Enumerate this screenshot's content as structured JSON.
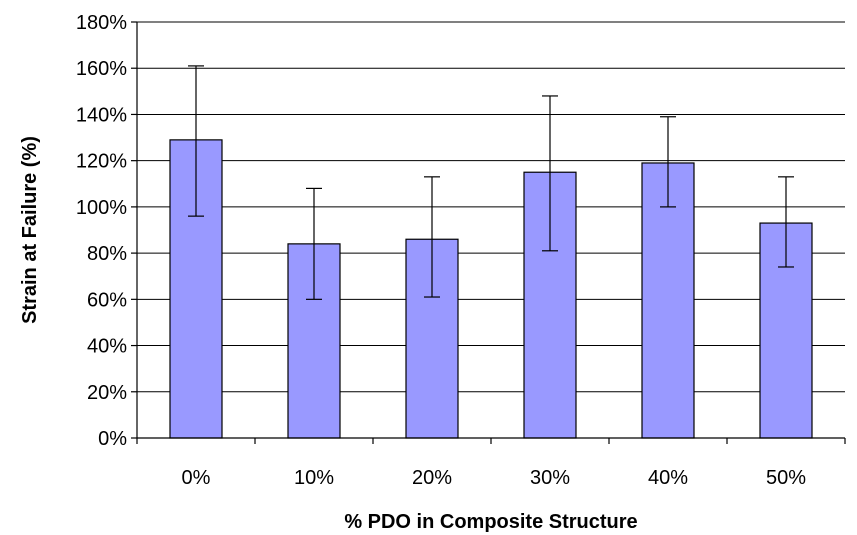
{
  "chart_data": {
    "type": "bar",
    "title": "",
    "xlabel": "% PDO in Composite Structure",
    "ylabel": "Strain at Failure (%)",
    "categories": [
      "0%",
      "10%",
      "20%",
      "30%",
      "40%",
      "50%"
    ],
    "values": [
      129,
      84,
      86,
      115,
      119,
      93
    ],
    "error_low": [
      96,
      60,
      61,
      81,
      100,
      74
    ],
    "error_high": [
      161,
      108,
      113,
      148,
      139,
      113
    ],
    "ylim": [
      0,
      180
    ],
    "y_ticks": [
      0,
      20,
      40,
      60,
      80,
      100,
      120,
      140,
      160,
      180
    ],
    "y_tick_labels": [
      "0%",
      "20%",
      "40%",
      "60%",
      "80%",
      "100%",
      "120%",
      "140%",
      "160%",
      "180%"
    ],
    "grid": true,
    "legend": "none",
    "colors": {
      "bar_fill": "#9999ff",
      "bar_stroke": "#000000",
      "gridline": "#000000",
      "error_bar": "#000000"
    }
  }
}
